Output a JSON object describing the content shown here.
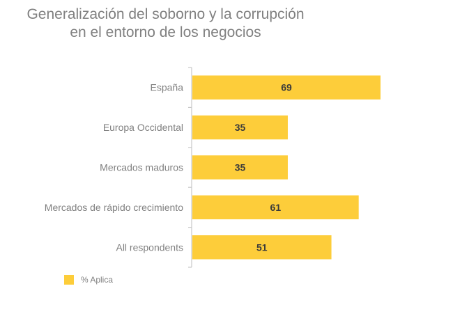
{
  "chart_data": {
    "type": "bar",
    "orientation": "horizontal",
    "title_lines": [
      "Generalización del soborno y la corrupción",
      "en el entorno de los negocios"
    ],
    "categories": [
      "España",
      "Europa Occidental",
      "Mercados maduros",
      "Mercados de rápido crecimiento",
      "All respondents"
    ],
    "series": [
      {
        "name": "% Aplica",
        "values": [
          69,
          35,
          35,
          61,
          51
        ],
        "color": "#FDCD3A"
      }
    ],
    "xlim": [
      0,
      69
    ],
    "xlabel": "",
    "ylabel": "",
    "grid": false,
    "data_labels": true,
    "legend": {
      "placement": "bottom-left",
      "entries": [
        "% Aplica"
      ]
    }
  },
  "colors": {
    "bar": "#FDCD3A",
    "text": "#808080",
    "value_text": "#3A3A3A",
    "axis": "#C8C8C8"
  }
}
